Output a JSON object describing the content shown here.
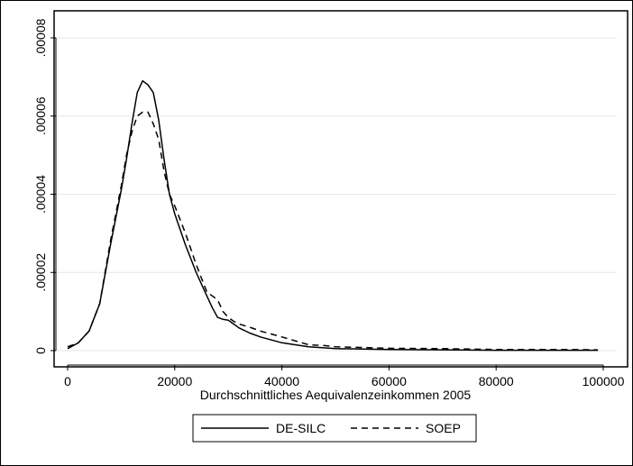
{
  "chart_data": {
    "type": "line",
    "title": "",
    "xlabel": "Durchschnittliches Aequivalenzeinkommen 2005",
    "ylabel": "",
    "xlim": [
      0,
      100000
    ],
    "ylim": [
      0,
      8e-05
    ],
    "grid": true,
    "legend_position": "bottom",
    "x_ticks": [
      {
        "value": 0,
        "label": "0"
      },
      {
        "value": 20000,
        "label": "20000"
      },
      {
        "value": 40000,
        "label": "40000"
      },
      {
        "value": 60000,
        "label": "60000"
      },
      {
        "value": 80000,
        "label": "80000"
      },
      {
        "value": 100000,
        "label": "100000"
      }
    ],
    "y_ticks": [
      {
        "value": 0,
        "label": "0"
      },
      {
        "value": 2e-05,
        "label": ".00002"
      },
      {
        "value": 4e-05,
        "label": ".00004"
      },
      {
        "value": 6e-05,
        "label": ".00006"
      },
      {
        "value": 8e-05,
        "label": ".00008"
      }
    ],
    "series": [
      {
        "name": "DE-SILC",
        "style": "solid",
        "x": [
          0,
          2000,
          4000,
          6000,
          8000,
          10000,
          11000,
          12000,
          13000,
          14000,
          15000,
          16000,
          17000,
          18000,
          19000,
          20000,
          22000,
          24000,
          26000,
          27000,
          28000,
          29000,
          30000,
          31000,
          32000,
          34000,
          36000,
          40000,
          45000,
          50000,
          60000,
          70000,
          80000,
          90000,
          99000
        ],
        "y": [
          5e-07,
          2e-06,
          5e-06,
          1.2e-05,
          2.7e-05,
          4.1e-05,
          4.9e-05,
          5.8e-05,
          6.6e-05,
          6.9e-05,
          6.8e-05,
          6.6e-05,
          5.9e-05,
          4.9e-05,
          4e-05,
          3.5e-05,
          2.7e-05,
          2e-05,
          1.4e-05,
          1.1e-05,
          8.5e-06,
          8e-06,
          7.8e-06,
          6.8e-06,
          5.8e-06,
          4.5e-06,
          3.5e-06,
          2e-06,
          1e-06,
          5e-07,
          3e-07,
          2e-07,
          1e-07,
          1e-07,
          1e-07
        ]
      },
      {
        "name": "SOEP",
        "style": "dashed",
        "x": [
          0,
          2000,
          4000,
          6000,
          8000,
          10000,
          11000,
          12000,
          13000,
          14000,
          15000,
          16000,
          17000,
          18000,
          19000,
          20000,
          22000,
          24000,
          26000,
          27000,
          28000,
          29000,
          30000,
          31000,
          32000,
          34000,
          36000,
          40000,
          45000,
          48000,
          50000,
          60000,
          70000,
          80000,
          90000,
          99000
        ],
        "y": [
          1e-06,
          2e-06,
          5e-06,
          1.2e-05,
          2.8e-05,
          4.2e-05,
          5e-05,
          5.6e-05,
          6e-05,
          6.1e-05,
          6.1e-05,
          5.8e-05,
          5.4e-05,
          4.6e-05,
          4e-05,
          3.7e-05,
          3e-05,
          2.2e-05,
          1.5e-05,
          1.4e-05,
          1.3e-05,
          1e-05,
          8.5e-06,
          7.5e-06,
          6.8e-06,
          6e-06,
          5e-06,
          3.5e-06,
          1.5e-06,
          1.3e-06,
          1e-06,
          6e-07,
          5e-07,
          3e-07,
          3e-07,
          2e-07
        ]
      }
    ]
  }
}
